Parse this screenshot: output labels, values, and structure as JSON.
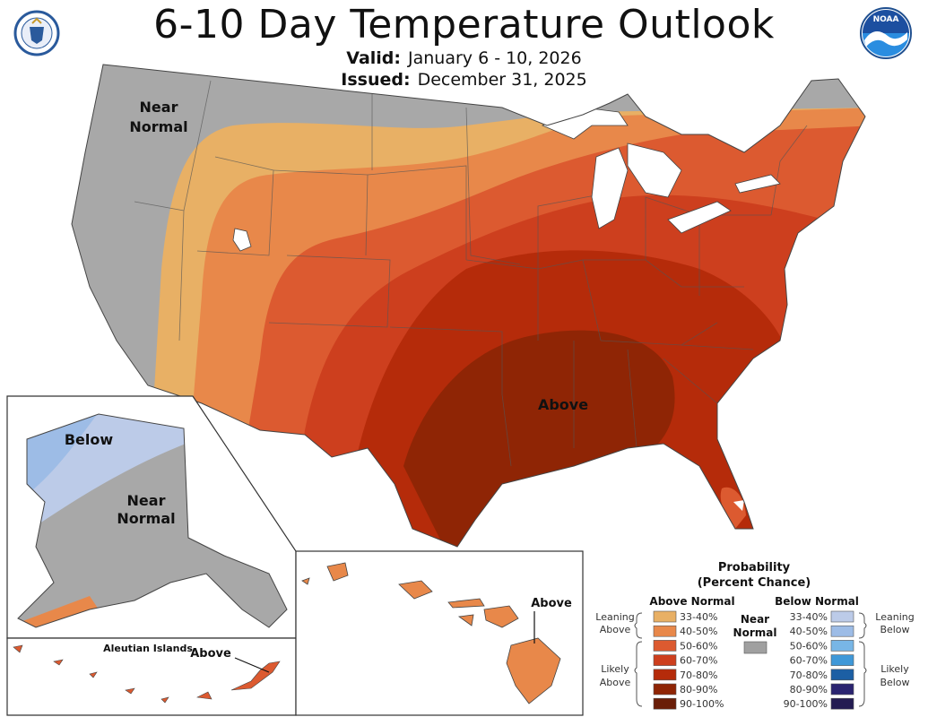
{
  "header": {
    "title": "6-10 Day Temperature Outlook",
    "valid_label": "Valid:",
    "valid_value": "January 6 - 10, 2026",
    "issued_label": "Issued:",
    "issued_value": "December 31, 2025"
  },
  "logos": {
    "left_seal": "U.S. Department of Commerce seal",
    "right_logo_text": "NOAA"
  },
  "map_labels": {
    "conus_near_normal_1": "Near",
    "conus_near_normal_2": "Normal",
    "conus_above": "Above",
    "alaska_below": "Below",
    "alaska_near_normal_1": "Near",
    "alaska_near_normal_2": "Normal",
    "aleutian_title": "Aleutian Islands",
    "aleutian_above": "Above",
    "hawaii_above": "Above"
  },
  "legend": {
    "title_1": "Probability",
    "title_2": "(Percent Chance)",
    "above_header": "Above Normal",
    "below_header": "Below Normal",
    "near_1": "Near",
    "near_2": "Normal",
    "near_color": "#A0A0A0",
    "leaning_above_1": "Leaning",
    "leaning_above_2": "Above",
    "likely_above_1": "Likely",
    "likely_above_2": "Above",
    "leaning_below_1": "Leaning",
    "leaning_below_2": "Below",
    "likely_below_1": "Likely",
    "likely_below_2": "Below",
    "above": [
      {
        "label": "33-40%",
        "color": "#E8B065"
      },
      {
        "label": "40-50%",
        "color": "#E8884A"
      },
      {
        "label": "50-60%",
        "color": "#DC5A30"
      },
      {
        "label": "60-70%",
        "color": "#CD3F1E"
      },
      {
        "label": "70-80%",
        "color": "#B52B0A"
      },
      {
        "label": "80-90%",
        "color": "#8F2505"
      },
      {
        "label": "90-100%",
        "color": "#6A1E08"
      }
    ],
    "below": [
      {
        "label": "33-40%",
        "color": "#BCCBE8"
      },
      {
        "label": "40-50%",
        "color": "#9DBCE6"
      },
      {
        "label": "50-60%",
        "color": "#78B6E6"
      },
      {
        "label": "60-70%",
        "color": "#3F98D8"
      },
      {
        "label": "70-80%",
        "color": "#1C5FA4"
      },
      {
        "label": "80-90%",
        "color": "#2A2470"
      },
      {
        "label": "90-100%",
        "color": "#241C52"
      }
    ]
  }
}
